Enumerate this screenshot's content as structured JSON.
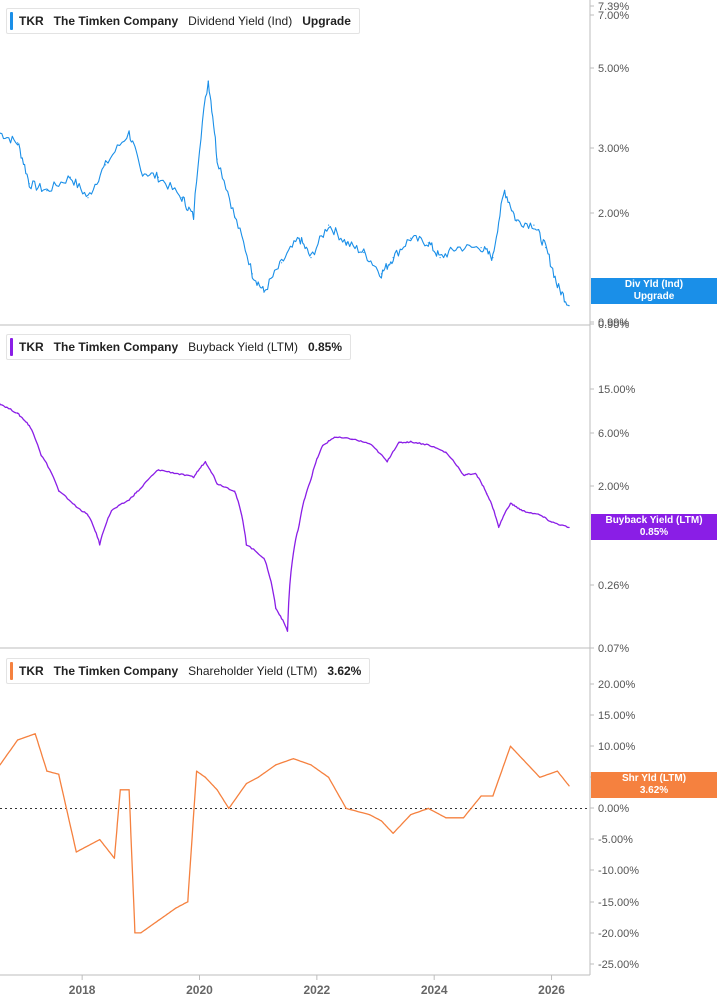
{
  "panels": [
    {
      "ticker": "TKR",
      "company": "The Timken Company",
      "metric": "Dividend Yield (Ind)",
      "value": "Upgrade",
      "badge_line1": "Div Yld (Ind)",
      "badge_line2": "Upgrade",
      "color": "#1a8fe8"
    },
    {
      "ticker": "TKR",
      "company": "The Timken Company",
      "metric": "Buyback Yield (LTM)",
      "value": "0.85%",
      "badge_line1": "Buyback Yield (LTM)",
      "badge_line2": "0.85%",
      "color": "#8a1ee6"
    },
    {
      "ticker": "TKR",
      "company": "The Timken Company",
      "metric": "Shareholder Yield (LTM)",
      "value": "3.62%",
      "badge_line1": "Shr Yld (LTM)",
      "badge_line2": "3.62%",
      "color": "#f5813f"
    }
  ],
  "x_axis": {
    "labels": [
      "2018",
      "2020",
      "2022",
      "2024",
      "2026"
    ]
  },
  "chart_data": [
    {
      "type": "line",
      "title": "Dividend Yield (Ind)",
      "scale": "log",
      "ylim": [
        0.9,
        7.39
      ],
      "y_ticks": [
        "7.39%",
        "7.00%",
        "5.00%",
        "3.00%",
        "2.00%",
        "0.99%",
        "0.90%"
      ],
      "x_range": [
        2016.6,
        2026.4
      ],
      "series": [
        {
          "name": "Dividend Yield (Ind)",
          "x": [
            2016.6,
            2016.9,
            2017.1,
            2017.4,
            2017.8,
            2018.1,
            2018.4,
            2018.8,
            2019.0,
            2019.3,
            2019.7,
            2019.9,
            2020.15,
            2020.3,
            2020.6,
            2020.9,
            2021.1,
            2021.4,
            2021.7,
            2021.9,
            2022.2,
            2022.5,
            2022.8,
            2023.1,
            2023.3,
            2023.6,
            2023.9,
            2024.1,
            2024.4,
            2024.8,
            2025.0,
            2025.2,
            2025.4,
            2025.7,
            2025.9,
            2026.1,
            2026.3
          ],
          "values": [
            3.3,
            3.1,
            2.4,
            2.3,
            2.5,
            2.2,
            2.7,
            3.3,
            2.6,
            2.5,
            2.2,
            1.95,
            4.6,
            2.8,
            1.95,
            1.35,
            1.2,
            1.45,
            1.7,
            1.5,
            1.85,
            1.65,
            1.55,
            1.35,
            1.5,
            1.7,
            1.65,
            1.5,
            1.6,
            1.6,
            1.5,
            2.3,
            1.9,
            1.85,
            1.6,
            1.25,
            1.1
          ]
        }
      ]
    },
    {
      "type": "line",
      "title": "Buyback Yield (LTM)",
      "scale": "log",
      "ylim": [
        0.07,
        30
      ],
      "y_ticks": [
        "15.00%",
        "6.00%",
        "2.00%",
        "0.26%",
        "0.07%"
      ],
      "x_range": [
        2016.6,
        2026.4
      ],
      "series": [
        {
          "name": "Buyback Yield (LTM)",
          "x": [
            2016.6,
            2016.9,
            2017.1,
            2017.3,
            2017.6,
            2017.9,
            2018.1,
            2018.3,
            2018.5,
            2018.8,
            2019.0,
            2019.3,
            2019.6,
            2019.9,
            2020.1,
            2020.3,
            2020.6,
            2020.8,
            2021.1,
            2021.3,
            2021.5,
            2021.7,
            2021.9,
            2022.1,
            2022.3,
            2022.6,
            2022.9,
            2023.2,
            2023.4,
            2023.6,
            2023.9,
            2024.2,
            2024.5,
            2024.7,
            2024.9,
            2025.1,
            2025.3,
            2025.5,
            2025.8,
            2026.0,
            2026.3
          ],
          "values": [
            11,
            9,
            7,
            3.8,
            1.8,
            1.3,
            1.1,
            0.6,
            1.2,
            1.5,
            1.9,
            2.8,
            2.6,
            2.4,
            3.3,
            2.1,
            1.8,
            0.6,
            0.45,
            0.16,
            0.1,
            0.9,
            2.3,
            4.6,
            5.5,
            5.3,
            4.8,
            3.3,
            4.9,
            5.0,
            4.7,
            4.0,
            2.5,
            2.6,
            1.7,
            0.85,
            1.4,
            1.2,
            1.1,
            0.95,
            0.85
          ]
        }
      ]
    },
    {
      "type": "line",
      "title": "Shareholder Yield (LTM)",
      "scale": "linear",
      "ylim": [
        -25,
        20
      ],
      "y_ticks": [
        "20.00%",
        "15.00%",
        "10.00%",
        "5.00%",
        "0.00%",
        "-5.00%",
        "-10.00%",
        "-15.00%",
        "-20.00%",
        "-25.00%"
      ],
      "x_range": [
        2016.6,
        2026.4
      ],
      "series": [
        {
          "name": "Shareholder Yield (LTM)",
          "x": [
            2016.6,
            2016.9,
            2017.2,
            2017.4,
            2017.6,
            2017.9,
            2018.1,
            2018.3,
            2018.55,
            2018.65,
            2018.8,
            2018.9,
            2019.0,
            2019.3,
            2019.6,
            2019.8,
            2019.95,
            2020.1,
            2020.3,
            2020.5,
            2020.8,
            2021.0,
            2021.3,
            2021.6,
            2021.9,
            2022.2,
            2022.5,
            2022.9,
            2023.1,
            2023.3,
            2023.6,
            2023.9,
            2024.2,
            2024.5,
            2024.8,
            2025.0,
            2025.3,
            2025.5,
            2025.8,
            2026.1,
            2026.3
          ],
          "values": [
            7,
            11,
            12,
            6,
            5.5,
            -7,
            -6,
            -5,
            -8,
            3,
            3,
            -20,
            -20,
            -18,
            -16,
            -15,
            6,
            5,
            3,
            0,
            4,
            5,
            7,
            8,
            7,
            5,
            0,
            -1,
            -2,
            -4,
            -1,
            0,
            -1.5,
            -1.5,
            2,
            2,
            10,
            8,
            5,
            6,
            3.62
          ]
        }
      ]
    }
  ]
}
